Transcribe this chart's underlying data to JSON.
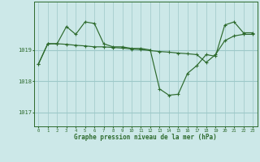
{
  "x": [
    0,
    1,
    2,
    3,
    4,
    5,
    6,
    7,
    8,
    9,
    10,
    11,
    12,
    13,
    14,
    15,
    16,
    17,
    18,
    19,
    20,
    21,
    22,
    23
  ],
  "y_main": [
    1018.55,
    1019.2,
    1019.2,
    1019.75,
    1019.5,
    1019.9,
    1019.85,
    1019.2,
    1019.1,
    1019.1,
    1019.05,
    1019.05,
    1019.0,
    1017.75,
    1017.55,
    1017.58,
    1018.25,
    1018.5,
    1018.85,
    1018.8,
    1019.8,
    1019.9,
    1019.55,
    1019.55
  ],
  "y_trend": [
    1018.55,
    1019.2,
    1019.2,
    1019.18,
    1019.15,
    1019.13,
    1019.1,
    1019.1,
    1019.08,
    1019.06,
    1019.03,
    1019.01,
    1018.98,
    1018.95,
    1018.93,
    1018.9,
    1018.88,
    1018.85,
    1018.6,
    1018.85,
    1019.3,
    1019.45,
    1019.5,
    1019.5
  ],
  "line_color": "#2d6a2d",
  "bg_color": "#cce8e8",
  "grid_color": "#9dc8c8",
  "label_color": "#2d6a2d",
  "ylabel_ticks": [
    1017,
    1018,
    1019
  ],
  "ylim": [
    1016.55,
    1020.55
  ],
  "xlim": [
    -0.5,
    23.5
  ],
  "xlabel": "Graphe pression niveau de la mer (hPa)"
}
